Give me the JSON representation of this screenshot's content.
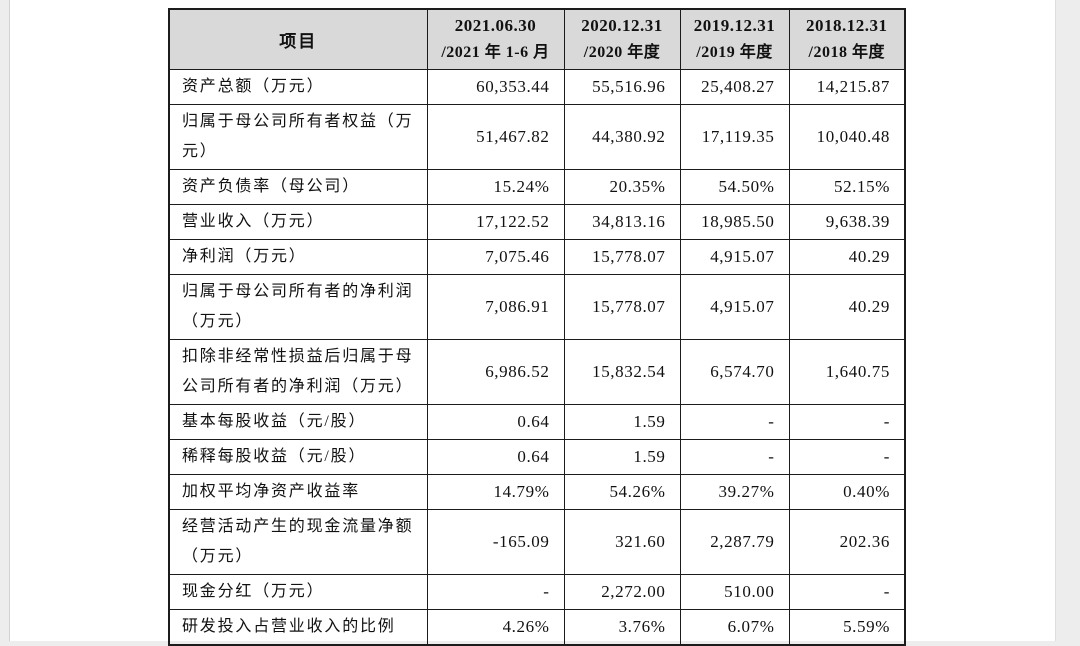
{
  "colors": {
    "page_background": "#ededed",
    "content_background": "#ffffff",
    "header_background": "#d9d9d9",
    "border": "#1c1c1c",
    "text": "#111111"
  },
  "table": {
    "header": {
      "item_label": "项目",
      "periods": [
        {
          "line1": "2021.06.30",
          "line2": "/2021 年 1-6 月"
        },
        {
          "line1": "2020.12.31",
          "line2": "/2020 年度"
        },
        {
          "line1": "2019.12.31",
          "line2": "/2019 年度"
        },
        {
          "line1": "2018.12.31",
          "line2": "/2018 年度"
        }
      ]
    },
    "rows": [
      {
        "label": "资产总额（万元）",
        "values": [
          "60,353.44",
          "55,516.96",
          "25,408.27",
          "14,215.87"
        ]
      },
      {
        "label": "归属于母公司所有者权益（万元）",
        "values": [
          "51,467.82",
          "44,380.92",
          "17,119.35",
          "10,040.48"
        ]
      },
      {
        "label": "资产负债率（母公司）",
        "values": [
          "15.24%",
          "20.35%",
          "54.50%",
          "52.15%"
        ]
      },
      {
        "label": "营业收入（万元）",
        "values": [
          "17,122.52",
          "34,813.16",
          "18,985.50",
          "9,638.39"
        ]
      },
      {
        "label": "净利润（万元）",
        "values": [
          "7,075.46",
          "15,778.07",
          "4,915.07",
          "40.29"
        ]
      },
      {
        "label": "归属于母公司所有者的净利润（万元）",
        "values": [
          "7,086.91",
          "15,778.07",
          "4,915.07",
          "40.29"
        ]
      },
      {
        "label": "扣除非经常性损益后归属于母公司所有者的净利润（万元）",
        "values": [
          "6,986.52",
          "15,832.54",
          "6,574.70",
          "1,640.75"
        ]
      },
      {
        "label": "基本每股收益（元/股）",
        "values": [
          "0.64",
          "1.59",
          "-",
          "-"
        ]
      },
      {
        "label": "稀释每股收益（元/股）",
        "values": [
          "0.64",
          "1.59",
          "-",
          "-"
        ]
      },
      {
        "label": "加权平均净资产收益率",
        "values": [
          "14.79%",
          "54.26%",
          "39.27%",
          "0.40%"
        ]
      },
      {
        "label": "经营活动产生的现金流量净额（万元）",
        "values": [
          "-165.09",
          "321.60",
          "2,287.79",
          "202.36"
        ]
      },
      {
        "label": "现金分红（万元）",
        "values": [
          "-",
          "2,272.00",
          "510.00",
          "-"
        ]
      },
      {
        "label": "研发投入占营业收入的比例",
        "values": [
          "4.26%",
          "3.76%",
          "6.07%",
          "5.59%"
        ]
      }
    ]
  }
}
